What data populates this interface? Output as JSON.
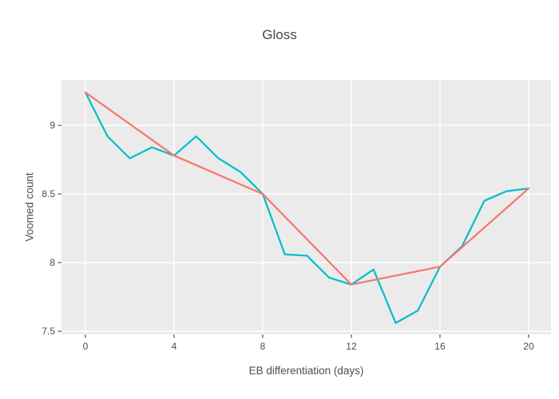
{
  "chart_data": {
    "type": "line",
    "title": "Gloss",
    "xlabel": "EB differentiation (days)",
    "ylabel": "Voomed count",
    "x_ticks": [
      0,
      4,
      8,
      12,
      16,
      20
    ],
    "y_ticks": [
      7.5,
      8,
      8.5,
      9
    ],
    "xlim": [
      -1.08,
      21.01
    ],
    "ylim": [
      7.477,
      9.332
    ],
    "grid": true,
    "legend": "none",
    "colors": {
      "panel_bg": "#EBEBEB",
      "grid": "#FFFFFF",
      "tick_mark": "#333333",
      "tick_text": "#4D4D4D",
      "axis_title_text": "#4D4D4D",
      "title_text": "#444444",
      "series_teal": "#00BFC4",
      "series_salmon": "#F8766D"
    },
    "series": [
      {
        "id": "series1-teal",
        "color": "#00BFC4",
        "x": [
          0,
          1,
          2,
          3,
          4,
          5,
          6,
          7,
          8,
          9,
          10,
          11,
          12,
          13,
          14,
          15,
          16,
          17,
          18,
          19,
          20
        ],
        "y": [
          9.24,
          8.92,
          8.76,
          8.84,
          8.78,
          8.92,
          8.76,
          8.66,
          8.5,
          8.06,
          8.05,
          7.89,
          7.84,
          7.95,
          7.56,
          7.65,
          7.97,
          8.12,
          8.45,
          8.52,
          8.54
        ]
      },
      {
        "id": "series2-salmon",
        "color": "#F8766D",
        "x": [
          0,
          4,
          8,
          12,
          16,
          20
        ],
        "y": [
          9.24,
          8.78,
          8.5,
          7.84,
          7.97,
          8.54
        ]
      }
    ]
  }
}
